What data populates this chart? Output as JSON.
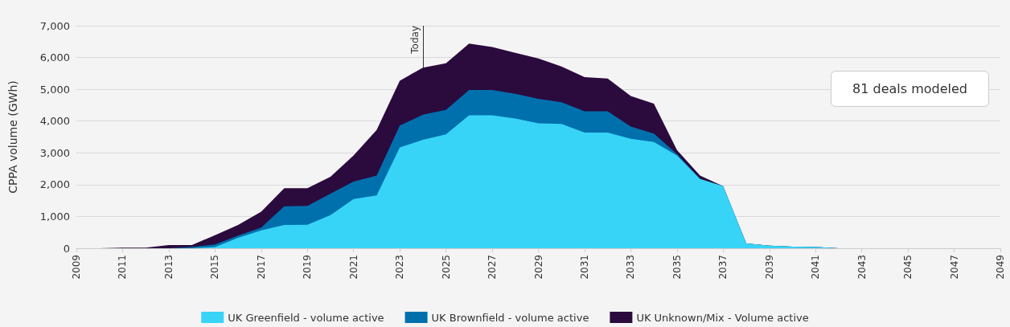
{
  "chart_data": {
    "type": "area",
    "stacked": true,
    "ylabel": "CPPA volume (GWh)",
    "x": [
      2009,
      2010,
      2011,
      2012,
      2013,
      2014,
      2015,
      2016,
      2017,
      2018,
      2019,
      2020,
      2021,
      2022,
      2023,
      2024,
      2025,
      2026,
      2027,
      2028,
      2029,
      2030,
      2031,
      2032,
      2033,
      2034,
      2035,
      2036,
      2037,
      2038,
      2039,
      2040,
      2041,
      2042,
      2043,
      2044,
      2045,
      2046,
      2047,
      2048,
      2049
    ],
    "series": [
      {
        "name": "UK Greenfield - volume active",
        "color": "#38d4f7",
        "values": [
          0,
          0,
          0,
          0,
          0,
          0,
          40,
          330,
          560,
          730,
          740,
          1040,
          1550,
          1660,
          3170,
          3410,
          3580,
          4180,
          4180,
          4080,
          3930,
          3910,
          3640,
          3640,
          3440,
          3340,
          2920,
          2180,
          1950,
          150,
          80,
          50,
          40,
          0,
          0,
          0,
          0,
          0,
          0,
          0,
          0
        ]
      },
      {
        "name": "UK Brownfield - volume active",
        "color": "#0070ad",
        "values": [
          0,
          0,
          0,
          0,
          0,
          40,
          80,
          70,
          90,
          590,
          590,
          680,
          550,
          630,
          690,
          790,
          770,
          800,
          800,
          780,
          770,
          680,
          670,
          670,
          390,
          270,
          40,
          0,
          0,
          0,
          0,
          0,
          0,
          0,
          0,
          0,
          0,
          0,
          0,
          0,
          0
        ]
      },
      {
        "name": "UK Unknown/Mix - Volume active",
        "color": "#2b0a3d",
        "values": [
          0,
          0,
          20,
          20,
          100,
          60,
          290,
          330,
          500,
          570,
          560,
          530,
          820,
          1430,
          1410,
          1480,
          1470,
          1460,
          1350,
          1290,
          1270,
          1130,
          1070,
          1030,
          960,
          940,
          130,
          110,
          0,
          0,
          0,
          0,
          0,
          0,
          0,
          0,
          0,
          0,
          0,
          0,
          0
        ]
      }
    ],
    "xlim": [
      2009,
      2049
    ],
    "xticks": [
      2009,
      2011,
      2013,
      2015,
      2017,
      2019,
      2021,
      2023,
      2025,
      2027,
      2029,
      2031,
      2033,
      2035,
      2037,
      2039,
      2041,
      2043,
      2045,
      2047,
      2049
    ],
    "ylim": [
      0,
      7000
    ],
    "yticks": [
      0,
      {
        "value": 1000,
        "label": "1,000"
      },
      {
        "value": 2000,
        "label": "2,000"
      },
      {
        "value": 3000,
        "label": "3,000"
      },
      {
        "value": 4000,
        "label": "4,000"
      },
      {
        "value": 5000,
        "label": "5,000"
      },
      {
        "value": 6000,
        "label": "6,000"
      },
      {
        "value": 7000,
        "label": "7,000"
      }
    ],
    "ref_lines": [
      {
        "axis": "x",
        "value": 2024,
        "label": "Today",
        "color": "#333333"
      }
    ],
    "annotations": [
      "81 deals modeled"
    ],
    "grid": "y",
    "legend": "bottom"
  }
}
